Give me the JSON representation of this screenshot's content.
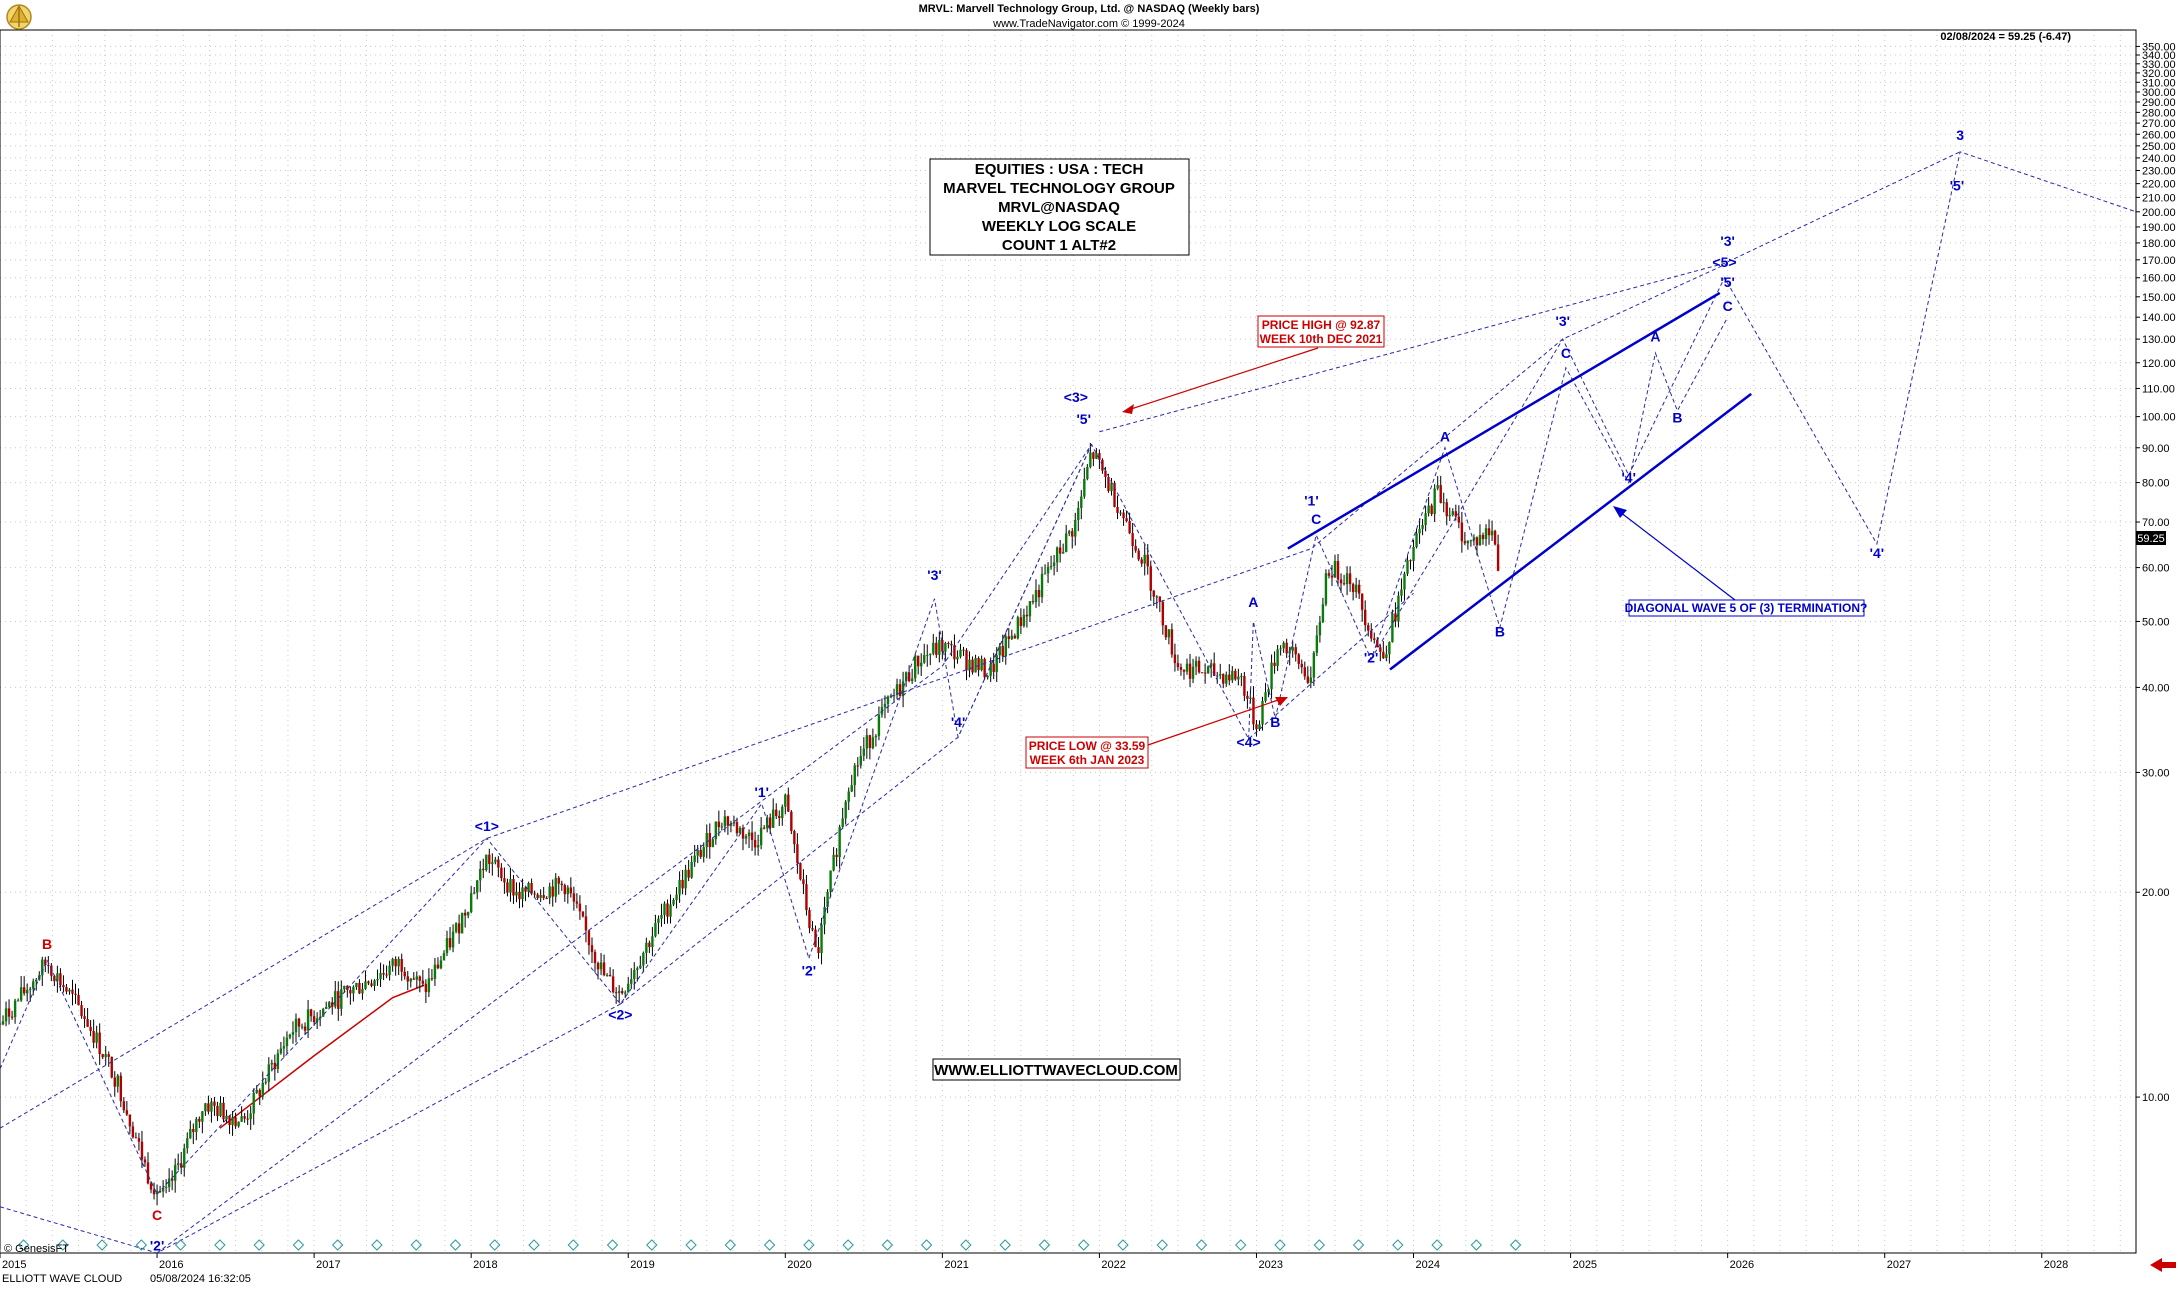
{
  "header": {
    "title": "MRVL:  Marvell Technology Group, Ltd. @ NASDAQ  (Weekly bars)",
    "subtitle": "www.TradeNavigator.com © 1999-2024",
    "last_quote": "02/08/2024 = 59.25 (-6.47)",
    "price_tag": "59.25"
  },
  "info_box": {
    "lines": [
      "EQUITIES : USA : TECH",
      "MARVEL TECHNOLOGY GROUP",
      "MRVL@NASDAQ",
      "WEEKLY LOG SCALE",
      "COUNT 1 ALT#2"
    ]
  },
  "website": "WWW.ELLIOTTWAVECLOUD.COM",
  "annotations": {
    "price_high": [
      "PRICE HIGH @ 92.87",
      "WEEK 10th DEC 2021"
    ],
    "price_low": [
      "PRICE LOW @ 33.59",
      "WEEK 6th JAN 2023"
    ],
    "diagonal": "DIAGONAL WAVE 5 OF (3) TERMINATION?"
  },
  "footer": {
    "copyright": "© GenesisFT",
    "brand": "ELLIOTT WAVE CLOUD",
    "timestamp": "05/08/2024 16:32:05"
  },
  "chart_data": {
    "type": "candlestick",
    "scale": "log",
    "y_ticks": [
      10,
      20,
      30,
      40,
      50,
      60,
      70,
      80,
      90,
      100,
      110,
      120,
      130,
      140,
      150,
      160,
      170,
      180,
      190,
      200,
      210,
      220,
      230,
      240,
      250,
      260,
      270,
      280,
      290,
      300,
      310,
      320,
      330,
      340,
      350
    ],
    "ylim": [
      5.9,
      370
    ],
    "x_range": [
      2015.0,
      2028.6
    ],
    "x_ticks": [
      "2015",
      "2016",
      "2017",
      "2018",
      "2019",
      "2020",
      "2021",
      "2022",
      "2023",
      "2024",
      "2025",
      "2026",
      "2027",
      "2028"
    ],
    "price_path": [
      [
        2015.0,
        12.8
      ],
      [
        2015.3,
        15.8
      ],
      [
        2015.55,
        13.0
      ],
      [
        2015.75,
        10.5
      ],
      [
        2015.95,
        7.6
      ],
      [
        2016.05,
        7.1
      ],
      [
        2016.3,
        9.8
      ],
      [
        2016.55,
        9.2
      ],
      [
        2016.85,
        12.5
      ],
      [
        2017.2,
        14.2
      ],
      [
        2017.55,
        15.8
      ],
      [
        2017.7,
        14.3
      ],
      [
        2017.9,
        17.5
      ],
      [
        2018.1,
        22.5
      ],
      [
        2018.3,
        19.8
      ],
      [
        2018.6,
        20.5
      ],
      [
        2018.85,
        15.0
      ],
      [
        2018.95,
        14.2
      ],
      [
        2019.3,
        20.0
      ],
      [
        2019.6,
        25.8
      ],
      [
        2019.8,
        23.8
      ],
      [
        2020.0,
        27.0
      ],
      [
        2020.2,
        16.0
      ],
      [
        2020.4,
        29.0
      ],
      [
        2020.6,
        36.0
      ],
      [
        2020.85,
        44.0
      ],
      [
        2021.0,
        46.0
      ],
      [
        2021.3,
        42.0
      ],
      [
        2021.6,
        55.0
      ],
      [
        2021.85,
        70.0
      ],
      [
        2021.95,
        89.0
      ],
      [
        2022.1,
        76.0
      ],
      [
        2022.3,
        60.0
      ],
      [
        2022.5,
        43.0
      ],
      [
        2022.7,
        42.0
      ],
      [
        2022.9,
        41.5
      ],
      [
        2023.0,
        35.0
      ],
      [
        2023.15,
        47.0
      ],
      [
        2023.35,
        41.0
      ],
      [
        2023.45,
        60.0
      ],
      [
        2023.6,
        58.0
      ],
      [
        2023.8,
        44.0
      ],
      [
        2024.0,
        64.0
      ],
      [
        2024.15,
        78.0
      ],
      [
        2024.35,
        65.0
      ],
      [
        2024.5,
        68.0
      ],
      [
        2024.55,
        59.25
      ]
    ],
    "ma_path": [
      [
        2016.4,
        9.0
      ],
      [
        2017.0,
        11.5
      ],
      [
        2017.5,
        14.0
      ],
      [
        2017.7,
        14.6
      ]
    ],
    "wave_labels": [
      {
        "text": "B",
        "x": 2015.3,
        "y": 16.5,
        "color": "#cc0000",
        "size": "lg"
      },
      {
        "text": "C",
        "x": 2016.0,
        "y": 6.6,
        "color": "#cc0000",
        "size": "lg"
      },
      {
        "text": "'2'",
        "x": 2016.0,
        "y": 5.95,
        "color": "#0000cc",
        "size": "lg"
      },
      {
        "text": "<1>",
        "x": 2018.1,
        "y": 24.6,
        "color": "#0000cc",
        "size": "lg"
      },
      {
        "text": "<2>",
        "x": 2018.95,
        "y": 13.0,
        "color": "#0000cc",
        "size": "lg"
      },
      {
        "text": "'1'",
        "x": 2019.85,
        "y": 27.6,
        "color": "#0000cc",
        "size": "lg"
      },
      {
        "text": "'2'",
        "x": 2020.15,
        "y": 15.1,
        "color": "#0000cc",
        "size": "lg"
      },
      {
        "text": "'3'",
        "x": 2020.95,
        "y": 57.5,
        "color": "#0000cc",
        "size": "lg"
      },
      {
        "text": "'4'",
        "x": 2021.1,
        "y": 35.0,
        "color": "#0000cc",
        "size": "lg"
      },
      {
        "text": "<3>",
        "x": 2021.85,
        "y": 105.0,
        "color": "#0000cc",
        "size": "lg"
      },
      {
        "text": "'5'",
        "x": 2021.9,
        "y": 97.5,
        "color": "#0000cc",
        "size": "lg"
      },
      {
        "text": "A",
        "x": 2022.98,
        "y": 52.5,
        "color": "#0000cc",
        "size": "lg"
      },
      {
        "text": "<4>",
        "x": 2022.95,
        "y": 32.7,
        "color": "#0000cc",
        "size": "lg"
      },
      {
        "text": "B",
        "x": 2023.12,
        "y": 35.0,
        "color": "#0000cc",
        "size": "lg"
      },
      {
        "text": "'1'",
        "x": 2023.35,
        "y": 74.0,
        "color": "#0000cc",
        "size": "lg"
      },
      {
        "text": "C",
        "x": 2023.38,
        "y": 69.5,
        "color": "#0000cc",
        "size": "lg"
      },
      {
        "text": "'2'",
        "x": 2023.73,
        "y": 43.5,
        "color": "#0000cc",
        "size": "lg"
      },
      {
        "text": "A",
        "x": 2024.2,
        "y": 92.0,
        "color": "#0000cc",
        "size": "lg"
      },
      {
        "text": "B",
        "x": 2024.55,
        "y": 47.5,
        "color": "#0000cc",
        "size": "lg"
      },
      {
        "text": "'3'",
        "x": 2024.95,
        "y": 136.0,
        "color": "#0000cc",
        "size": "lg"
      },
      {
        "text": "C",
        "x": 2024.97,
        "y": 122.0,
        "color": "#0000cc",
        "size": "lg"
      },
      {
        "text": "A",
        "x": 2025.54,
        "y": 129.0,
        "color": "#0000cc",
        "size": "lg"
      },
      {
        "text": "B",
        "x": 2025.68,
        "y": 98.0,
        "color": "#0000cc",
        "size": "lg"
      },
      {
        "text": "'4'",
        "x": 2025.37,
        "y": 80.0,
        "color": "#0000cc",
        "size": "lg"
      },
      {
        "text": "'3'",
        "x": 2026.0,
        "y": 178.0,
        "color": "#0000cc",
        "size": "lg"
      },
      {
        "text": "<5>",
        "x": 2025.98,
        "y": 166.0,
        "color": "#0000cc",
        "size": "lg"
      },
      {
        "text": "'5'",
        "x": 2026.0,
        "y": 155.0,
        "color": "#0000cc",
        "size": "lg"
      },
      {
        "text": "C",
        "x": 2026.0,
        "y": 143.0,
        "color": "#0000cc",
        "size": "lg"
      },
      {
        "text": "'4'",
        "x": 2026.95,
        "y": 62.0,
        "color": "#0000cc",
        "size": "lg"
      },
      {
        "text": "3",
        "x": 2027.48,
        "y": 255.0,
        "color": "#0000cc",
        "size": "xl"
      },
      {
        "text": "'5'",
        "x": 2027.46,
        "y": 215.0,
        "color": "#0000cc",
        "size": "lg"
      }
    ],
    "dashed_lines": [
      [
        [
          2015.0,
          9.0
        ],
        [
          2018.1,
          24.0
        ],
        [
          2023.35,
          64.0
        ],
        [
          2024.95,
          130.0
        ],
        [
          2026.0,
          168.0
        ]
      ],
      [
        [
          2015.0,
          6.9
        ],
        [
          2016.0,
          5.9
        ],
        [
          2018.95,
          13.7
        ]
      ],
      [
        [
          2016.0,
          5.9
        ],
        [
          2021.0,
          43.0
        ],
        [
          2021.95,
          91.0
        ],
        [
          2022.95,
          33.6
        ],
        [
          2024.0,
          55.0
        ]
      ],
      [
        [
          2018.95,
          13.7
        ],
        [
          2021.1,
          33.8
        ],
        [
          2021.95,
          91.0
        ]
      ],
      [
        [
          2020.15,
          16.0
        ],
        [
          2020.95,
          54.0
        ],
        [
          2021.1,
          33.8
        ],
        [
          2021.95,
          91.0
        ]
      ],
      [
        [
          2015.0,
          11.0
        ],
        [
          2015.3,
          15.9
        ],
        [
          2016.0,
          7.2
        ]
      ],
      [
        [
          2016.0,
          7.2
        ],
        [
          2018.1,
          24.0
        ],
        [
          2018.95,
          13.7
        ],
        [
          2019.85,
          27.0
        ],
        [
          2020.15,
          16.0
        ]
      ],
      [
        [
          2022.95,
          33.6
        ],
        [
          2022.98,
          50.0
        ],
        [
          2023.12,
          36.0
        ],
        [
          2023.38,
          67.0
        ],
        [
          2023.73,
          44.0
        ],
        [
          2024.2,
          90.0
        ],
        [
          2024.55,
          49.0
        ],
        [
          2024.97,
          118.0
        ],
        [
          2025.37,
          80.0
        ],
        [
          2025.54,
          124.0
        ],
        [
          2025.68,
          102.0
        ],
        [
          2026.0,
          140.0
        ]
      ],
      [
        [
          2023.73,
          44.0
        ],
        [
          2024.95,
          130.0
        ],
        [
          2025.37,
          82.0
        ],
        [
          2025.98,
          160.0
        ],
        [
          2026.95,
          65.0
        ],
        [
          2027.48,
          245.0
        ],
        [
          2028.6,
          200.0
        ]
      ],
      [
        [
          2015.0,
          5.9
        ],
        [
          2015.0,
          6.0
        ]
      ],
      [
        [
          2022.0,
          95.0
        ],
        [
          2025.98,
          168.0
        ],
        [
          2027.48,
          245.0
        ]
      ]
    ],
    "channel_lines": [
      [
        [
          2023.2,
          64.0
        ],
        [
          2025.95,
          152.0
        ]
      ],
      [
        [
          2023.85,
          42.5
        ],
        [
          2026.15,
          108.0
        ]
      ]
    ],
    "arrows": [
      {
        "from": [
          2023.25,
          60.5
        ],
        "to": [
          2022.98,
          33.8
        ],
        "color": "#cc0000"
      },
      {
        "from": [
          2023.8,
          65.0
        ],
        "to": [
          2025.05,
          110.0
        ],
        "color": "#cc0000"
      },
      {
        "from": [
          2025.8,
          50.0
        ],
        "to": [
          2025.0,
          64.5
        ],
        "color": "#0000cc"
      }
    ]
  }
}
